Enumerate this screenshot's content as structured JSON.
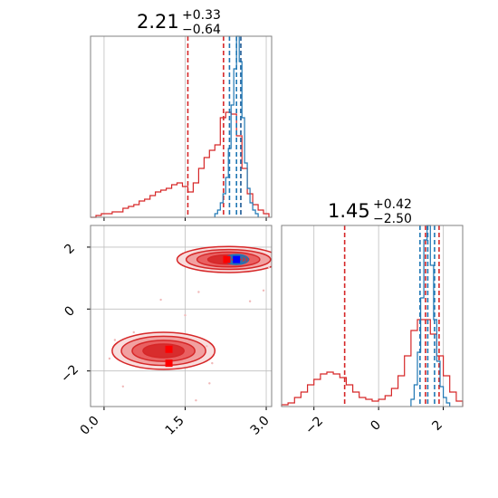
{
  "colors": {
    "red": "#d62728",
    "blue": "#1f77b4",
    "grid": "#bfbfbf",
    "frame": "#808080",
    "pure_red": "#ff0000",
    "pure_blue": "#0000ff"
  },
  "chart_data": [
    {
      "type": "histogram",
      "panel": "top-left",
      "title": {
        "value": "2.21",
        "plus": "+0.33",
        "minus": "−0.64"
      },
      "xlim": [
        -0.25,
        3.1
      ],
      "grid": true,
      "series": [
        {
          "name": "",
          "color": "#d62728",
          "bin_edges": [
            -0.25,
            -0.15,
            -0.05,
            0.05,
            0.15,
            0.25,
            0.35,
            0.45,
            0.55,
            0.65,
            0.75,
            0.85,
            0.95,
            1.05,
            1.15,
            1.25,
            1.35,
            1.45,
            1.55,
            1.65,
            1.75,
            1.85,
            1.95,
            2.05,
            2.15,
            2.25,
            2.35,
            2.45,
            2.55,
            2.65,
            2.75,
            2.85,
            2.95,
            3.05
          ],
          "counts": [
            0,
            0.01,
            0.02,
            0.02,
            0.03,
            0.03,
            0.05,
            0.06,
            0.07,
            0.09,
            0.1,
            0.12,
            0.14,
            0.15,
            0.16,
            0.18,
            0.19,
            0.17,
            0.14,
            0.19,
            0.27,
            0.33,
            0.37,
            0.4,
            0.55,
            0.58,
            0.57,
            0.45,
            0.27,
            0.13,
            0.07,
            0.04,
            0.02
          ],
          "quantiles": [
            1.55,
            2.21,
            2.53
          ]
        },
        {
          "name": "",
          "color": "#1f77b4",
          "bin_edges": [
            2.05,
            2.1,
            2.15,
            2.2,
            2.25,
            2.3,
            2.35,
            2.4,
            2.45,
            2.5,
            2.55,
            2.6,
            2.65,
            2.7,
            2.75,
            2.8,
            2.85
          ],
          "counts": [
            0.02,
            0.04,
            0.08,
            0.13,
            0.22,
            0.38,
            0.62,
            0.82,
            1.0,
            0.86,
            0.55,
            0.3,
            0.16,
            0.08,
            0.04,
            0.02
          ],
          "quantiles": [
            2.32,
            2.45,
            2.53
          ]
        }
      ]
    },
    {
      "type": "histogram",
      "panel": "bottom-right",
      "title": {
        "value": "1.45",
        "plus": "+0.42",
        "minus": "−2.50"
      },
      "xlim": [
        -3.0,
        2.6
      ],
      "xticks": [
        "−2",
        "0",
        "2"
      ],
      "grid": true,
      "series": [
        {
          "name": "",
          "color": "#d62728",
          "bin_edges": [
            -3.0,
            -2.8,
            -2.6,
            -2.4,
            -2.2,
            -2.0,
            -1.8,
            -1.6,
            -1.4,
            -1.2,
            -1.0,
            -0.8,
            -0.6,
            -0.4,
            -0.2,
            0.0,
            0.2,
            0.4,
            0.6,
            0.8,
            1.0,
            1.2,
            1.4,
            1.6,
            1.8,
            2.0,
            2.2,
            2.4,
            2.6
          ],
          "counts": [
            0.01,
            0.02,
            0.05,
            0.08,
            0.12,
            0.15,
            0.18,
            0.19,
            0.18,
            0.16,
            0.12,
            0.08,
            0.05,
            0.04,
            0.03,
            0.04,
            0.06,
            0.1,
            0.17,
            0.28,
            0.42,
            0.48,
            0.48,
            0.4,
            0.28,
            0.17,
            0.08,
            0.03
          ],
          "quantiles": [
            -1.05,
            1.45,
            1.87
          ]
        },
        {
          "name": "",
          "color": "#1f77b4",
          "bin_edges": [
            1.0,
            1.1,
            1.2,
            1.3,
            1.4,
            1.5,
            1.6,
            1.7,
            1.8,
            1.9,
            2.0,
            2.1,
            2.2
          ],
          "counts": [
            0.04,
            0.12,
            0.3,
            0.6,
            0.92,
            1.0,
            0.78,
            0.48,
            0.25,
            0.11,
            0.05,
            0.02
          ],
          "quantiles": [
            1.28,
            1.52,
            1.73
          ]
        }
      ]
    },
    {
      "type": "contour",
      "panel": "bottom-left",
      "xlim": [
        -0.25,
        3.1
      ],
      "ylim": [
        -3.15,
        2.7
      ],
      "xticks": [
        "0.0",
        "1.5",
        "3.0"
      ],
      "yticks": [
        "−2",
        "0",
        "2"
      ],
      "grid": true,
      "series": [
        {
          "name": "",
          "color": "#d62728",
          "modes": [
            {
              "center": [
                2.3,
                1.6
              ],
              "levels": [
                [
                  0.95,
                  0.42
                ],
                [
                  0.78,
                  0.32
                ],
                [
                  0.58,
                  0.24
                ],
                [
                  0.38,
                  0.15
                ]
              ]
            },
            {
              "center": [
                1.1,
                -1.35
              ],
              "levels": [
                [
                  0.95,
                  0.6
                ],
                [
                  0.78,
                  0.47
                ],
                [
                  0.58,
                  0.34
                ],
                [
                  0.38,
                  0.22
                ]
              ]
            }
          ],
          "markers": [
            [
              1.2,
              -1.3
            ],
            [
              1.2,
              -1.75
            ],
            [
              2.27,
              1.6
            ]
          ],
          "scatter": [
            [
              0.2,
              -1.0
            ],
            [
              0.35,
              -2.5
            ],
            [
              0.55,
              -0.75
            ],
            [
              1.7,
              -2.95
            ],
            [
              1.95,
              -2.4
            ],
            [
              2.0,
              -1.75
            ],
            [
              2.95,
              0.6
            ],
            [
              3.05,
              1.35
            ],
            [
              1.9,
              -1.2
            ],
            [
              0.1,
              -1.6
            ],
            [
              1.5,
              -0.2
            ],
            [
              1.05,
              0.3
            ],
            [
              2.7,
              0.25
            ],
            [
              1.75,
              0.55
            ]
          ]
        },
        {
          "name": "",
          "color": "#1f77b4",
          "modes": [
            {
              "center": [
                2.45,
                1.6
              ],
              "levels": [
                [
                  0.22,
                  0.16
                ],
                [
                  0.17,
                  0.12
                ],
                [
                  0.11,
                  0.08
                ]
              ]
            }
          ],
          "markers": [
            [
              2.45,
              1.6
            ]
          ]
        }
      ]
    }
  ]
}
